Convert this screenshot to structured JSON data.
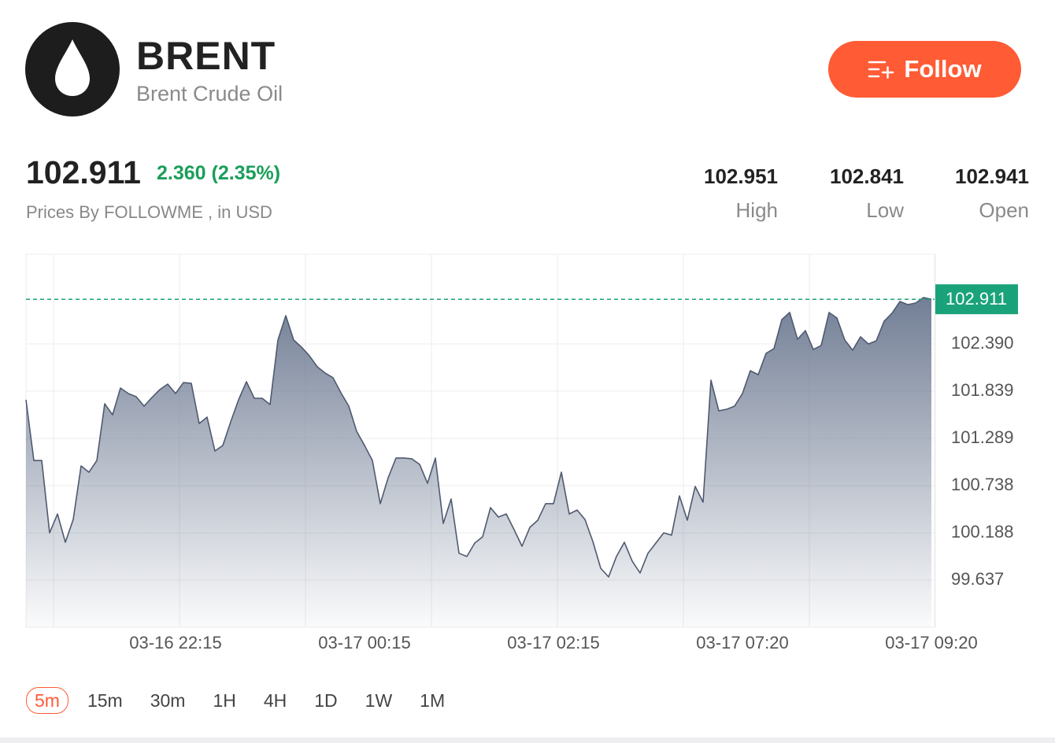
{
  "header": {
    "symbol": "BRENT",
    "name": "Brent Crude Oil",
    "follow": "Follow"
  },
  "quote": {
    "price": "102.911",
    "change": "2.360 (2.35%)",
    "source": "Prices By FOLLOWME , in USD",
    "stats": [
      {
        "value": "102.951",
        "label": "High"
      },
      {
        "value": "102.841",
        "label": "Low"
      },
      {
        "value": "102.941",
        "label": "Open"
      }
    ]
  },
  "chart_data": {
    "type": "area",
    "color": "#4f5a70",
    "fill": "#6b7890",
    "last_color": "#1aa37a",
    "ylim": [
      99.087,
      103.436
    ],
    "yticks": [
      {
        "value": 102.39,
        "label": "102.390"
      },
      101.839,
      101.289,
      100.738,
      100.188,
      99.637
    ],
    "last_price": 102.911,
    "categories": [
      null,
      null,
      null,
      null,
      null,
      null,
      null,
      null,
      null,
      null,
      null,
      null,
      null,
      null,
      null,
      null,
      null,
      null,
      null,
      "03-16 22:15",
      null,
      null,
      null,
      null,
      null,
      null,
      null,
      null,
      null,
      null,
      null,
      null,
      null,
      null,
      null,
      null,
      null,
      null,
      null,
      null,
      null,
      null,
      null,
      "03-17 00:15",
      null,
      null,
      null,
      null,
      null,
      null,
      null,
      null,
      null,
      null,
      null,
      null,
      null,
      null,
      null,
      null,
      null,
      null,
      null,
      null,
      null,
      null,
      null,
      "03-17 02:15",
      null,
      null,
      null,
      null,
      null,
      null,
      null,
      null,
      null,
      null,
      null,
      null,
      null,
      null,
      null,
      null,
      null,
      null,
      null,
      null,
      null,
      null,
      null,
      "03-17 07:20",
      null,
      null,
      null,
      null,
      null,
      null,
      null,
      null,
      null,
      null,
      null,
      null,
      null,
      null,
      null,
      null,
      null,
      null,
      null,
      null,
      null,
      null,
      null,
      "03-17 09:20"
    ],
    "values": [
      101.739,
      101.032,
      101.032,
      100.188,
      100.408,
      100.078,
      100.344,
      100.968,
      100.895,
      101.032,
      101.693,
      101.564,
      101.876,
      101.812,
      101.775,
      101.665,
      101.766,
      101.858,
      101.922,
      101.812,
      101.94,
      101.931,
      101.463,
      101.537,
      101.142,
      101.207,
      101.482,
      101.739,
      101.95,
      101.757,
      101.757,
      101.684,
      102.436,
      102.72,
      102.436,
      102.353,
      102.252,
      102.124,
      102.051,
      101.996,
      101.821,
      101.665,
      101.372,
      101.207,
      101.032,
      100.528,
      100.83,
      101.06,
      101.06,
      101.051,
      100.986,
      100.766,
      101.06,
      100.298,
      100.583,
      99.95,
      99.913,
      100.069,
      100.142,
      100.482,
      100.372,
      100.408,
      100.225,
      100.032,
      100.252,
      100.335,
      100.528,
      100.528,
      100.895,
      100.408,
      100.454,
      100.344,
      100.087,
      99.775,
      99.674,
      99.913,
      100.078,
      99.858,
      99.72,
      99.95,
      100.069,
      100.188,
      100.161,
      100.619,
      100.335,
      100.729,
      100.546,
      101.968,
      101.61,
      101.629,
      101.665,
      101.812,
      102.078,
      102.032,
      102.28,
      102.335,
      102.674,
      102.757,
      102.445,
      102.546,
      102.326,
      102.372,
      102.757,
      102.693,
      102.436,
      102.317,
      102.473,
      102.39,
      102.427,
      102.656,
      102.748,
      102.885,
      102.849,
      102.867,
      102.931,
      102.911
    ]
  },
  "timeframes": {
    "selected": 0,
    "items": [
      "5m",
      "15m",
      "30m",
      "1H",
      "4H",
      "1D",
      "1W",
      "1M"
    ]
  }
}
